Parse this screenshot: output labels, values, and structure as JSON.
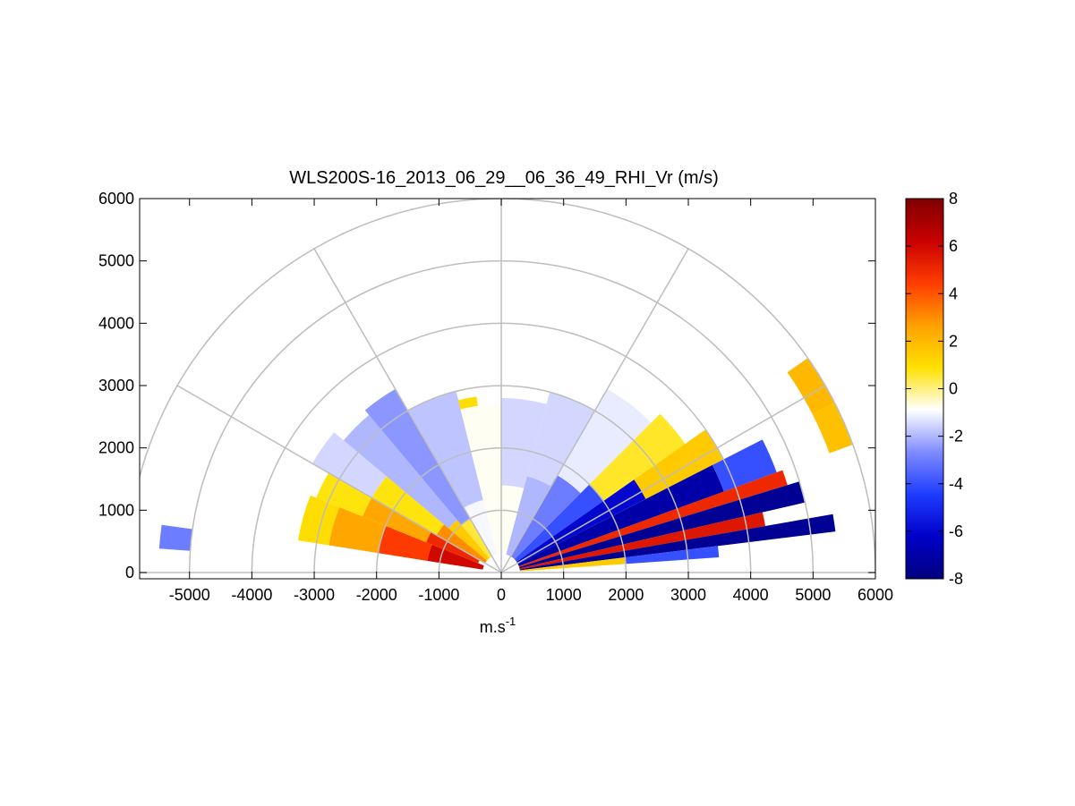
{
  "chart_data": {
    "type": "heatmap",
    "title": "WLS200S-16_2013_06_29__06_36_49_RHI_Vr (m/s)",
    "xlabel": "m.s",
    "xlabel_superscript": "-1",
    "ylabel": "",
    "xlim": [
      -5800,
      6000
    ],
    "ylim": [
      -100,
      6000
    ],
    "x_ticks": [
      "-5000",
      "-4000",
      "-3000",
      "-2000",
      "-1000",
      "0",
      "1000",
      "2000",
      "3000",
      "4000",
      "5000",
      "6000"
    ],
    "x_tick_values": [
      -5000,
      -4000,
      -3000,
      -2000,
      -1000,
      0,
      1000,
      2000,
      3000,
      4000,
      5000,
      6000
    ],
    "y_ticks": [
      "0",
      "1000",
      "2000",
      "3000",
      "4000",
      "5000",
      "6000"
    ],
    "y_tick_values": [
      0,
      1000,
      2000,
      3000,
      4000,
      5000,
      6000
    ],
    "polar_grid": {
      "range_rings": [
        1000,
        2000,
        3000,
        4000,
        5000,
        6000
      ],
      "spokes_deg": [
        0,
        30,
        60,
        90,
        120,
        150,
        180
      ]
    },
    "colorbar": {
      "min": -8,
      "max": 8,
      "ticks": [
        "8",
        "6",
        "4",
        "2",
        "0",
        "-2",
        "-4",
        "-6",
        "-8"
      ],
      "tick_values": [
        8,
        6,
        4,
        2,
        0,
        -2,
        -4,
        -6,
        -8
      ],
      "colormap": [
        "#00007f",
        "#0000c8",
        "#1e3cff",
        "#7f8cff",
        "#ffffff",
        "#ffe100",
        "#ffa000",
        "#ff3c00",
        "#c80000",
        "#7f0000"
      ]
    },
    "sectors": [
      {
        "az": [
          158,
          171
        ],
        "r": [
          300,
          1200
        ],
        "v": 6
      },
      {
        "az": [
          158,
          171
        ],
        "r": [
          1200,
          2000
        ],
        "v": 4.5
      },
      {
        "az": [
          158,
          171
        ],
        "r": [
          2000,
          2800
        ],
        "v": 2.5
      },
      {
        "az": [
          158,
          171
        ],
        "r": [
          2800,
          3300
        ],
        "v": 1
      },
      {
        "az": [
          150,
          158
        ],
        "r": [
          400,
          1300
        ],
        "v": 5
      },
      {
        "az": [
          150,
          158
        ],
        "r": [
          1300,
          2400
        ],
        "v": 2.5
      },
      {
        "az": [
          150,
          158
        ],
        "r": [
          2400,
          3200
        ],
        "v": 0.8
      },
      {
        "az": [
          140,
          150
        ],
        "r": [
          300,
          1200
        ],
        "v": 3
      },
      {
        "az": [
          140,
          150
        ],
        "r": [
          1200,
          2400
        ],
        "v": 0.8
      },
      {
        "az": [
          140,
          150
        ],
        "r": [
          2400,
          3500
        ],
        "v": -1.5
      },
      {
        "az": [
          130,
          140
        ],
        "r": [
          300,
          1100
        ],
        "v": 1.5
      },
      {
        "az": [
          130,
          140
        ],
        "r": [
          1100,
          3300
        ],
        "v": -2
      },
      {
        "az": [
          120,
          130
        ],
        "r": [
          300,
          1000
        ],
        "v": 0.5
      },
      {
        "az": [
          120,
          130
        ],
        "r": [
          1000,
          3400
        ],
        "v": -2.5
      },
      {
        "az": [
          104,
          120
        ],
        "r": [
          300,
          1200
        ],
        "v": -1
      },
      {
        "az": [
          104,
          120
        ],
        "r": [
          1200,
          3000
        ],
        "v": -1.8
      },
      {
        "az": [
          90,
          104
        ],
        "r": [
          300,
          2700
        ],
        "v": -0.8
      },
      {
        "az": [
          98,
          104
        ],
        "r": [
          2700,
          2850
        ],
        "v": 1
      },
      {
        "az": [
          75,
          90
        ],
        "r": [
          300,
          1400
        ],
        "v": -0.8
      },
      {
        "az": [
          75,
          90
        ],
        "r": [
          1400,
          2800
        ],
        "v": -1.5
      },
      {
        "az": [
          60,
          75
        ],
        "r": [
          300,
          1600
        ],
        "v": -2
      },
      {
        "az": [
          60,
          75
        ],
        "r": [
          1600,
          3000
        ],
        "v": -1.5
      },
      {
        "az": [
          45,
          60
        ],
        "r": [
          300,
          1800
        ],
        "v": -3
      },
      {
        "az": [
          45,
          60
        ],
        "r": [
          1800,
          3400
        ],
        "v": -1.2
      },
      {
        "az": [
          35,
          45
        ],
        "r": [
          300,
          2000
        ],
        "v": -4
      },
      {
        "az": [
          35,
          45
        ],
        "r": [
          2000,
          3600
        ],
        "v": 0.6
      },
      {
        "az": [
          27,
          35
        ],
        "r": [
          300,
          2600
        ],
        "v": -6
      },
      {
        "az": [
          27,
          35
        ],
        "r": [
          2600,
          4000
        ],
        "v": 1.5
      },
      {
        "az": [
          20,
          27
        ],
        "r": [
          300,
          3800
        ],
        "v": -7
      },
      {
        "az": [
          20,
          27
        ],
        "r": [
          3800,
          4700
        ],
        "v": -4
      },
      {
        "az": [
          17,
          20
        ],
        "r": [
          300,
          4800
        ],
        "v": 5
      },
      {
        "az": [
          13,
          17
        ],
        "r": [
          300,
          5000
        ],
        "v": -7.5
      },
      {
        "az": [
          10,
          13
        ],
        "r": [
          300,
          4300
        ],
        "v": 5.5
      },
      {
        "az": [
          7,
          10
        ],
        "r": [
          300,
          5400
        ],
        "v": -7.5
      },
      {
        "az": [
          4,
          7
        ],
        "r": [
          300,
          2000
        ],
        "v": 1.5
      },
      {
        "az": [
          4,
          7
        ],
        "r": [
          2000,
          3500
        ],
        "v": -4
      },
      {
        "az": [
          27,
          35
        ],
        "r": [
          5600,
          6000
        ],
        "v": 2
      },
      {
        "az": [
          20,
          27
        ],
        "r": [
          5600,
          6000
        ],
        "v": 1.8
      },
      {
        "az": [
          172,
          176
        ],
        "r": [
          5000,
          5500
        ],
        "v": -3
      }
    ]
  }
}
